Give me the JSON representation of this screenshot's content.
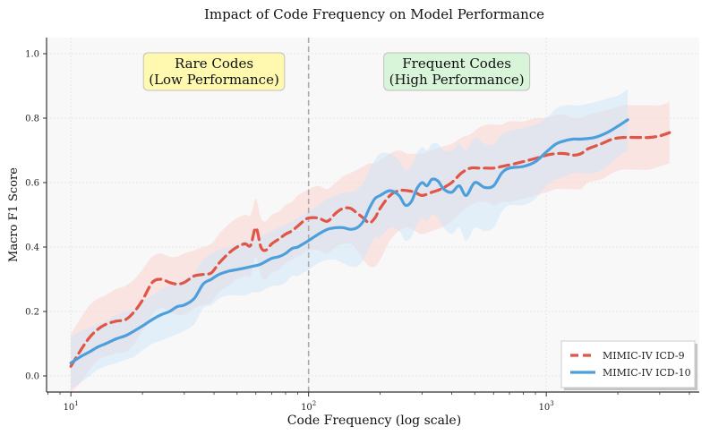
{
  "chart_data": {
    "type": "line",
    "title": "Impact of Code Frequency on Model Performance",
    "xlabel": "Code Frequency (log scale)",
    "ylabel": "Macro F1 Score",
    "xscale": "log",
    "xlim": [
      7.9,
      4400
    ],
    "ylim": [
      -0.05,
      1.05
    ],
    "grid": true,
    "y_ticks": [
      0.0,
      0.2,
      0.4,
      0.6,
      0.8,
      1.0
    ],
    "y_tick_labels": [
      "0.0",
      "0.2",
      "0.4",
      "0.6",
      "0.8",
      "1.0"
    ],
    "x_ticks": [
      10,
      100,
      1000
    ],
    "x_tick_labels": [
      {
        "base": "10",
        "exp": "1"
      },
      {
        "base": "10",
        "exp": "2"
      },
      {
        "base": "10",
        "exp": "3"
      }
    ],
    "threshold_line": {
      "x": 100,
      "style": "dashed"
    },
    "annotations": [
      {
        "id": "rare",
        "lines": [
          "Rare Codes",
          "(Low Performance)"
        ],
        "x": 40,
        "y": 0.95,
        "color": "#fffaa8"
      },
      {
        "id": "frequent",
        "lines": [
          "Frequent Codes",
          "(High Performance)"
        ],
        "x": 420,
        "y": 0.95,
        "color": "#d6f5d6"
      }
    ],
    "legend": {
      "position": "bottom-right"
    },
    "series": [
      {
        "name": "MIMIC-IV ICD-9",
        "color": "#e05545",
        "style": "dashed",
        "x": [
          10,
          11,
          12,
          13,
          14,
          15.5,
          17,
          18.5,
          20,
          22,
          24,
          26,
          28,
          30,
          33,
          36,
          39,
          42,
          46,
          50,
          54,
          57,
          60,
          63,
          66,
          70,
          75,
          80,
          85,
          90,
          95,
          100,
          110,
          120,
          130,
          140,
          150,
          160,
          170,
          180,
          190,
          200,
          220,
          240,
          260,
          280,
          300,
          330,
          360,
          400,
          440,
          480,
          520,
          560,
          600,
          650,
          700,
          800,
          900,
          1000,
          1100,
          1200,
          1300,
          1400,
          1500,
          1700,
          1900,
          2100,
          2400,
          2700,
          3000,
          3300
        ],
        "y": [
          0.03,
          0.08,
          0.12,
          0.145,
          0.16,
          0.17,
          0.175,
          0.2,
          0.235,
          0.29,
          0.3,
          0.29,
          0.285,
          0.29,
          0.31,
          0.315,
          0.32,
          0.35,
          0.38,
          0.4,
          0.41,
          0.405,
          0.46,
          0.4,
          0.39,
          0.41,
          0.425,
          0.44,
          0.45,
          0.465,
          0.48,
          0.49,
          0.49,
          0.48,
          0.505,
          0.52,
          0.52,
          0.505,
          0.49,
          0.475,
          0.49,
          0.52,
          0.56,
          0.575,
          0.575,
          0.57,
          0.56,
          0.57,
          0.58,
          0.6,
          0.63,
          0.645,
          0.645,
          0.645,
          0.645,
          0.65,
          0.655,
          0.665,
          0.675,
          0.685,
          0.69,
          0.69,
          0.685,
          0.69,
          0.705,
          0.72,
          0.735,
          0.74,
          0.74,
          0.74,
          0.745,
          0.755
        ],
        "upper": [
          0.13,
          0.18,
          0.22,
          0.24,
          0.25,
          0.27,
          0.28,
          0.3,
          0.33,
          0.37,
          0.38,
          0.37,
          0.37,
          0.38,
          0.39,
          0.4,
          0.41,
          0.44,
          0.47,
          0.49,
          0.5,
          0.5,
          0.55,
          0.49,
          0.48,
          0.5,
          0.51,
          0.53,
          0.54,
          0.56,
          0.57,
          0.58,
          0.59,
          0.58,
          0.6,
          0.62,
          0.63,
          0.64,
          0.65,
          0.66,
          0.66,
          0.67,
          0.69,
          0.7,
          0.69,
          0.69,
          0.69,
          0.7,
          0.71,
          0.72,
          0.74,
          0.75,
          0.77,
          0.78,
          0.78,
          0.78,
          0.79,
          0.79,
          0.8,
          0.8,
          0.81,
          0.81,
          0.8,
          0.8,
          0.81,
          0.82,
          0.83,
          0.84,
          0.84,
          0.84,
          0.84,
          0.85
        ],
        "lower": [
          -0.05,
          -0.02,
          0.02,
          0.05,
          0.06,
          0.07,
          0.075,
          0.1,
          0.14,
          0.19,
          0.21,
          0.2,
          0.19,
          0.19,
          0.21,
          0.22,
          0.23,
          0.26,
          0.28,
          0.3,
          0.31,
          0.31,
          0.37,
          0.31,
          0.3,
          0.32,
          0.33,
          0.35,
          0.36,
          0.37,
          0.38,
          0.39,
          0.39,
          0.38,
          0.4,
          0.41,
          0.41,
          0.39,
          0.36,
          0.34,
          0.34,
          0.36,
          0.42,
          0.45,
          0.46,
          0.45,
          0.44,
          0.45,
          0.46,
          0.48,
          0.51,
          0.53,
          0.54,
          0.54,
          0.53,
          0.54,
          0.54,
          0.55,
          0.56,
          0.57,
          0.58,
          0.58,
          0.58,
          0.58,
          0.6,
          0.61,
          0.63,
          0.64,
          0.64,
          0.64,
          0.65,
          0.66
        ]
      },
      {
        "name": "MIMIC-IV ICD-10",
        "color": "#4d9fdb",
        "style": "solid",
        "x": [
          10,
          11,
          12,
          13,
          14,
          15.5,
          17,
          18.5,
          20,
          22,
          24,
          26,
          28,
          30,
          33,
          36,
          39,
          42,
          46,
          50,
          54,
          58,
          62,
          66,
          70,
          75,
          80,
          85,
          90,
          95,
          100,
          110,
          120,
          130,
          140,
          150,
          160,
          170,
          180,
          190,
          200,
          220,
          240,
          255,
          270,
          285,
          300,
          315,
          330,
          350,
          370,
          400,
          430,
          460,
          500,
          550,
          600,
          650,
          700,
          800,
          900,
          1000,
          1100,
          1200,
          1300,
          1400,
          1600,
          1800,
          2000,
          2200
        ],
        "y": [
          0.04,
          0.06,
          0.075,
          0.09,
          0.1,
          0.115,
          0.125,
          0.14,
          0.155,
          0.175,
          0.19,
          0.2,
          0.215,
          0.22,
          0.24,
          0.285,
          0.3,
          0.315,
          0.325,
          0.33,
          0.335,
          0.34,
          0.345,
          0.355,
          0.365,
          0.37,
          0.38,
          0.395,
          0.4,
          0.41,
          0.42,
          0.44,
          0.455,
          0.46,
          0.46,
          0.455,
          0.46,
          0.48,
          0.52,
          0.55,
          0.56,
          0.575,
          0.56,
          0.53,
          0.54,
          0.58,
          0.6,
          0.59,
          0.61,
          0.605,
          0.58,
          0.57,
          0.59,
          0.56,
          0.6,
          0.585,
          0.59,
          0.63,
          0.645,
          0.65,
          0.665,
          0.695,
          0.72,
          0.73,
          0.735,
          0.735,
          0.74,
          0.755,
          0.775,
          0.795
        ],
        "upper": [
          0.12,
          0.14,
          0.15,
          0.16,
          0.17,
          0.19,
          0.2,
          0.21,
          0.23,
          0.25,
          0.27,
          0.28,
          0.29,
          0.3,
          0.32,
          0.36,
          0.38,
          0.39,
          0.4,
          0.41,
          0.42,
          0.42,
          0.43,
          0.44,
          0.45,
          0.46,
          0.47,
          0.48,
          0.49,
          0.5,
          0.51,
          0.53,
          0.55,
          0.56,
          0.57,
          0.57,
          0.58,
          0.6,
          0.64,
          0.67,
          0.69,
          0.69,
          0.67,
          0.64,
          0.65,
          0.69,
          0.71,
          0.7,
          0.72,
          0.72,
          0.7,
          0.7,
          0.72,
          0.7,
          0.74,
          0.72,
          0.72,
          0.75,
          0.76,
          0.77,
          0.78,
          0.8,
          0.83,
          0.84,
          0.84,
          0.84,
          0.85,
          0.86,
          0.87,
          0.89
        ],
        "lower": [
          -0.04,
          -0.02,
          0.0,
          0.02,
          0.03,
          0.04,
          0.05,
          0.06,
          0.08,
          0.1,
          0.11,
          0.12,
          0.13,
          0.14,
          0.16,
          0.21,
          0.22,
          0.24,
          0.25,
          0.25,
          0.25,
          0.26,
          0.26,
          0.27,
          0.28,
          0.28,
          0.29,
          0.31,
          0.31,
          0.32,
          0.33,
          0.35,
          0.36,
          0.36,
          0.35,
          0.34,
          0.34,
          0.36,
          0.4,
          0.43,
          0.43,
          0.46,
          0.45,
          0.42,
          0.43,
          0.47,
          0.49,
          0.48,
          0.5,
          0.49,
          0.46,
          0.44,
          0.46,
          0.42,
          0.46,
          0.45,
          0.46,
          0.51,
          0.53,
          0.53,
          0.55,
          0.59,
          0.61,
          0.62,
          0.63,
          0.63,
          0.63,
          0.65,
          0.68,
          0.7
        ]
      }
    ]
  }
}
